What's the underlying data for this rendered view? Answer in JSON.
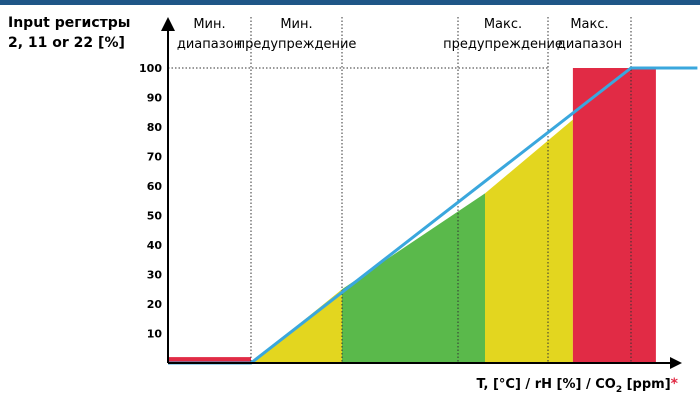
{
  "chart_data": {
    "type": "area",
    "ylabel_lines": [
      "Input регистры",
      "2, 11 or 22 [%]"
    ],
    "xlabel": {
      "prefix": "T, [°C] / rH [%] / CO",
      "sub": "2",
      "suffix": " [ppm]",
      "mark": "*"
    },
    "y_ticks": [
      10,
      20,
      30,
      40,
      50,
      60,
      70,
      80,
      90,
      100
    ],
    "ylim": [
      0,
      100
    ],
    "x_breaks": [
      0,
      1,
      2,
      3,
      4,
      5
    ],
    "xlim": [
      0,
      5.3
    ],
    "zones": [
      {
        "label_lines": [
          "Мин.",
          "диапазон"
        ]
      },
      {
        "label_lines": [
          "Мин.",
          "предупреждение"
        ]
      },
      {
        "label_lines": []
      },
      {
        "label_lines": [
          "Макс.",
          "предупреждение"
        ]
      },
      {
        "label_lines": [
          "Макс.",
          "диапазон"
        ]
      }
    ],
    "series": [
      {
        "x": [
          0,
          1,
          1,
          5,
          5.8
        ],
        "y": [
          0,
          0,
          0,
          100,
          100
        ]
      }
    ],
    "fills": [
      {
        "x_from": 0,
        "x_to": 1,
        "shape": "bar",
        "value": 2,
        "color": "#e12b45"
      },
      {
        "x_from": 1,
        "x_to": 2,
        "shape": "under_line",
        "color": "#e3d61f"
      },
      {
        "x_from": 2,
        "x_to": 3.3,
        "shape": "under_line",
        "color": "#5ab94b"
      },
      {
        "x_from": 3.3,
        "x_to": 4.3,
        "shape": "under_line",
        "color": "#e3d61f"
      },
      {
        "x_from": 4.3,
        "x_to": 5.3,
        "shape": "rect",
        "value": 100,
        "color": "#e12b45"
      }
    ],
    "colors": {
      "line": "#3aa7dd",
      "axis": "#000000",
      "grid": "#333333",
      "border": "#1f5687"
    },
    "grid": "dotted vertical separators and top reference line",
    "legend": "none"
  }
}
